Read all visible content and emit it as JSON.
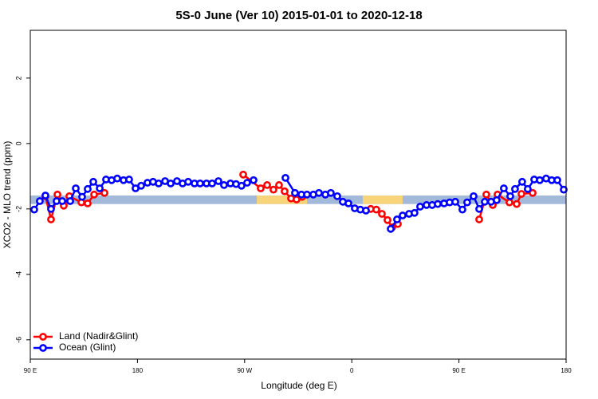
{
  "chart_data": {
    "type": "line",
    "title": "5S-0 June (Ver 10)   2015-01-01 to 2020-12-18",
    "x_label": "Longitude (deg E)",
    "y_label": "XCO2 - MLO trend (ppm)",
    "xlim": [
      90,
      540
    ],
    "xticks": [
      {
        "value": 90,
        "label": "90 E"
      },
      180,
      {
        "value": 270,
        "label": "90 W"
      },
      {
        "value": 360,
        "label": "0"
      },
      {
        "value": 450,
        "label": "90 E"
      },
      {
        "value": 540,
        "label": "180"
      }
    ],
    "ylim": [
      -6.59,
      3.46
    ],
    "yticks": [
      -6,
      -4,
      -2,
      0,
      2
    ],
    "legend": "bottomleft",
    "band": {
      "ylim": [
        -1.85,
        -1.59
      ],
      "color": "#a3b9d9"
    },
    "land_spans": [
      [
        280.2,
        322.4
      ],
      [
        369.2,
        402.7
      ]
    ],
    "land_color": "#f7d37a",
    "series": [
      {
        "name": "Land (Nadir&Glint)",
        "color": "#ff0000",
        "x": [
          102.7,
          107.4,
          112.8,
          118.1,
          122.8,
          132.9,
          138.2,
          143.6,
          152.3,
          null,
          268.8,
          283.5,
          288.9,
          294.2,
          298.9,
          303.6,
          309.0,
          313.6,
          318.3,
          null,
          375.9,
          380.6,
          385.3,
          390.0,
          394.0,
          398.7,
          null,
          467.0,
          473.0,
          478.4,
          482.4,
          492.4,
          498.5,
          502.5,
          511.9
        ],
        "values": [
          -1.61,
          -2.32,
          -1.56,
          -1.9,
          -1.61,
          -1.8,
          -1.83,
          -1.56,
          -1.51,
          null,
          -0.95,
          -1.37,
          -1.27,
          -1.41,
          -1.27,
          -1.46,
          -1.68,
          -1.71,
          -1.63,
          null,
          -2.0,
          -2.02,
          -2.15,
          -2.34,
          -2.56,
          -2.46,
          null,
          -2.32,
          -1.56,
          -1.88,
          -1.56,
          -1.8,
          -1.85,
          -1.54,
          -1.51
        ]
      },
      {
        "name": "Ocean (Glint)",
        "color": "#0000ff",
        "x": [
          93.3,
          98.0,
          102.7,
          107.4,
          112.1,
          116.8,
          123.5,
          128.2,
          133.5,
          138.2,
          142.9,
          148.3,
          153.6,
          158.3,
          163.0,
          168.3,
          173.0,
          178.4,
          183.1,
          188.4,
          193.1,
          197.8,
          203.2,
          207.9,
          213.2,
          217.9,
          222.6,
          227.9,
          232.6,
          238.0,
          242.7,
          248.0,
          252.7,
          258.1,
          262.8,
          267.4,
          272.1,
          277.5,
          null,
          304.3,
          312.3,
          317.7,
          322.4,
          327.7,
          332.4,
          337.8,
          342.4,
          347.8,
          352.5,
          357.2,
          362.5,
          367.2,
          371.9,
          null,
          392.7,
          398.0,
          402.7,
          408.1,
          412.7,
          417.4,
          422.8,
          427.5,
          432.2,
          437.5,
          442.2,
          446.9,
          452.9,
          456.9,
          462.3,
          467.0,
          471.7,
          477.0,
          481.7,
          487.7,
          493.1,
          497.1,
          503.1,
          507.8,
          513.2,
          517.9,
          523.2,
          527.9,
          532.6,
          538.0
        ],
        "values": [
          -2.02,
          -1.76,
          -1.59,
          -2.0,
          -1.76,
          -1.76,
          -1.76,
          -1.37,
          -1.63,
          -1.39,
          -1.17,
          -1.37,
          -1.1,
          -1.12,
          -1.07,
          -1.12,
          -1.1,
          -1.37,
          -1.29,
          -1.2,
          -1.17,
          -1.22,
          -1.15,
          -1.22,
          -1.15,
          -1.22,
          -1.17,
          -1.22,
          -1.22,
          -1.22,
          -1.22,
          -1.15,
          -1.27,
          -1.22,
          -1.24,
          -1.29,
          -1.2,
          -1.12,
          null,
          -1.05,
          -1.51,
          -1.56,
          -1.56,
          -1.56,
          -1.51,
          -1.56,
          -1.51,
          -1.61,
          -1.78,
          -1.83,
          -1.98,
          -2.02,
          -2.05,
          null,
          -2.61,
          -2.32,
          -2.2,
          -2.15,
          -2.12,
          -1.93,
          -1.88,
          -1.88,
          -1.85,
          -1.83,
          -1.8,
          -1.78,
          -2.02,
          -1.8,
          -1.61,
          -2.0,
          -1.78,
          -1.78,
          -1.73,
          -1.37,
          -1.61,
          -1.39,
          -1.17,
          -1.39,
          -1.1,
          -1.12,
          -1.07,
          -1.12,
          -1.12,
          -1.41
        ]
      }
    ]
  }
}
